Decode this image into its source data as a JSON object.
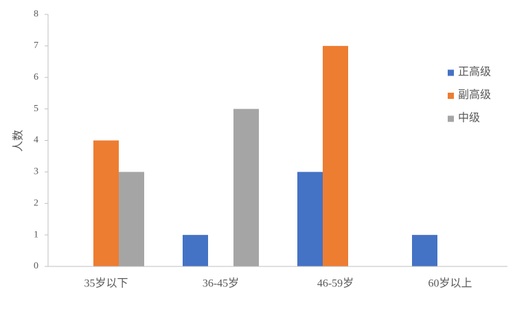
{
  "chart_data": {
    "type": "bar",
    "y_label": "人数",
    "categories": [
      "35岁以下",
      "36-45岁",
      "46-59岁",
      "60岁以上"
    ],
    "series": [
      {
        "name": "正高级",
        "color": "#4472c4",
        "values": [
          0,
          1,
          3,
          1
        ]
      },
      {
        "name": "副高级",
        "color": "#ed7d31",
        "values": [
          4,
          0,
          7,
          0
        ]
      },
      {
        "name": "中级",
        "color": "#a5a5a5",
        "values": [
          3,
          5,
          0,
          0
        ]
      }
    ],
    "ylim": [
      0,
      8
    ],
    "yticks": [
      0,
      1,
      2,
      3,
      4,
      5,
      6,
      7,
      8
    ],
    "grid": false,
    "legend": "right"
  }
}
